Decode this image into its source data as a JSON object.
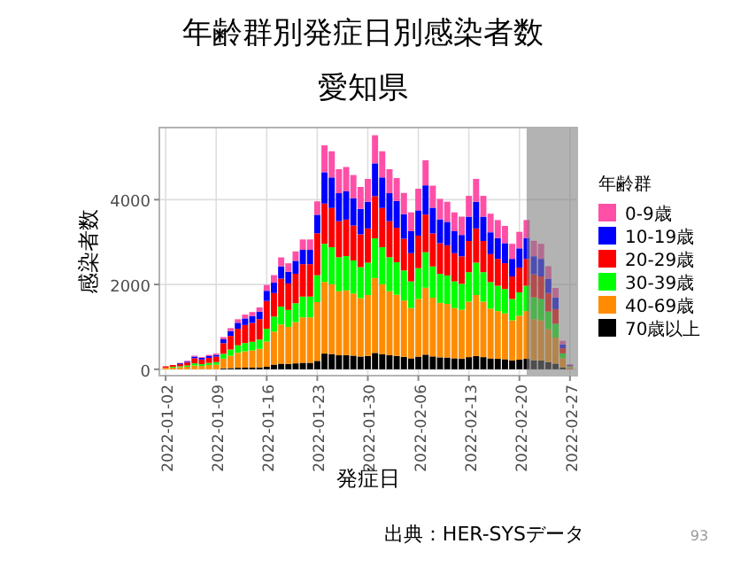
{
  "chart_data": {
    "type": "bar",
    "title": "年齢群別発症日別感染者数",
    "subtitle": "愛知県",
    "xlabel": "発症日",
    "ylabel": "感染者数",
    "legend_title": "年齢群",
    "stacked": true,
    "grid": true,
    "legend": "right",
    "x": [
      "2022-01-02",
      "2022-01-03",
      "2022-01-04",
      "2022-01-05",
      "2022-01-06",
      "2022-01-07",
      "2022-01-08",
      "2022-01-09",
      "2022-01-10",
      "2022-01-11",
      "2022-01-12",
      "2022-01-13",
      "2022-01-14",
      "2022-01-15",
      "2022-01-16",
      "2022-01-17",
      "2022-01-18",
      "2022-01-19",
      "2022-01-20",
      "2022-01-21",
      "2022-01-22",
      "2022-01-23",
      "2022-01-24",
      "2022-01-25",
      "2022-01-26",
      "2022-01-27",
      "2022-01-28",
      "2022-01-29",
      "2022-01-30",
      "2022-01-31",
      "2022-02-01",
      "2022-02-02",
      "2022-02-03",
      "2022-02-04",
      "2022-02-05",
      "2022-02-06",
      "2022-02-07",
      "2022-02-08",
      "2022-02-09",
      "2022-02-10",
      "2022-02-11",
      "2022-02-12",
      "2022-02-13",
      "2022-02-14",
      "2022-02-15",
      "2022-02-16",
      "2022-02-17",
      "2022-02-18",
      "2022-02-19",
      "2022-02-20",
      "2022-02-21",
      "2022-02-22",
      "2022-02-23",
      "2022-02-24",
      "2022-02-25",
      "2022-02-26",
      "2022-02-27"
    ],
    "xlim": [
      "2022-01-01T03:00",
      "2022-02-28"
    ],
    "xticks": [
      "2022-01-02",
      "2022-01-09",
      "2022-01-16",
      "2022-01-23",
      "2022-01-30",
      "2022-02-06",
      "2022-02-13",
      "2022-02-20",
      "2022-02-27"
    ],
    "ylim": [
      -150,
      5700
    ],
    "yticks": [
      0,
      2000,
      4000
    ],
    "series": [
      {
        "name": "70歳以上",
        "color": "#000000",
        "values": [
          0,
          0,
          0,
          0,
          null,
          null,
          null,
          null,
          23,
          29,
          35,
          38,
          40,
          44,
          59,
          111,
          132,
          125,
          139,
          153,
          153,
          198,
          370,
          360,
          330,
          334,
          321,
          301,
          314,
          386,
          360,
          330,
          316,
          291,
          259,
          298,
          345,
          303,
          281,
          277,
          259,
          252,
          286,
          314,
          286,
          257,
          246,
          237,
          207,
          227,
          246,
          212,
          207,
          170,
          134,
          47,
          8
        ]
      },
      {
        "name": "40-69歳",
        "color": "#ff8c00",
        "values": [
          40,
          40,
          50,
          60,
          90,
          80,
          100,
          110,
          228,
          291,
          354,
          387,
          405,
          438,
          597,
          777,
          924,
          875,
          973,
          1071,
          1071,
          1386,
          1690,
          1645,
          1510,
          1526,
          1466,
          1376,
          1437,
          1766,
          1645,
          1510,
          1443,
          1331,
          1184,
          1363,
          1578,
          1386,
          1286,
          1264,
          1184,
          1152,
          1309,
          1437,
          1309,
          1174,
          1126,
          1082,
          947,
          1037,
          1126,
          970,
          947,
          778,
          614,
          214,
          38
        ]
      },
      {
        "name": "30-39歳",
        "color": "#00ff00",
        "values": [
          0,
          20,
          20,
          30,
          50,
          40,
          50,
          60,
          114,
          146,
          177,
          194,
          203,
          219,
          299,
          355,
          422,
          400,
          445,
          490,
          490,
          634,
          898,
          874,
          802,
          811,
          779,
          731,
          763,
          938,
          874,
          802,
          767,
          707,
          629,
          724,
          838,
          736,
          683,
          672,
          629,
          612,
          695,
          763,
          695,
          624,
          598,
          575,
          503,
          551,
          598,
          515,
          503,
          413,
          326,
          114,
          20
        ]
      },
      {
        "name": "20-29歳",
        "color": "#ff0000",
        "values": [
          30,
          40,
          50,
          70,
          120,
          110,
          120,
          130,
          251,
          320,
          389,
          426,
          445,
          482,
          657,
          555,
          660,
          625,
          695,
          765,
          765,
          990,
          950,
          925,
          850,
          859,
          824,
          774,
          808,
          994,
          925,
          850,
          812,
          749,
          666,
          767,
          887,
          779,
          724,
          711,
          666,
          648,
          736,
          808,
          736,
          661,
          634,
          608,
          533,
          583,
          634,
          545,
          533,
          437,
          346,
          121,
          22
        ]
      },
      {
        "name": "10-19歳",
        "color": "#0000ff",
        "values": [
          0,
          0,
          20,
          20,
          40,
          40,
          40,
          40,
          91,
          116,
          142,
          155,
          162,
          175,
          239,
          244,
          290,
          275,
          306,
          337,
          337,
          436,
          739,
          720,
          661,
          668,
          641,
          602,
          629,
          773,
          720,
          661,
          631,
          582,
          518,
          596,
          690,
          606,
          563,
          553,
          518,
          504,
          573,
          629,
          573,
          514,
          493,
          473,
          414,
          454,
          493,
          424,
          414,
          340,
          269,
          94,
          17
        ]
      },
      {
        "name": "0-9歳",
        "color": "#ff4fa7",
        "values": [
          0,
          0,
          10,
          20,
          20,
          20,
          30,
          30,
          53,
          68,
          83,
          90,
          95,
          102,
          139,
          178,
          211,
          200,
          222,
          245,
          245,
          317,
          634,
          617,
          566,
          572,
          550,
          516,
          539,
          662,
          617,
          566,
          541,
          499,
          444,
          511,
          592,
          520,
          482,
          474,
          444,
          432,
          491,
          539,
          491,
          440,
          422,
          406,
          355,
          389,
          422,
          364,
          355,
          292,
          230,
          80,
          14
        ]
      }
    ],
    "bands": [
      {
        "axis": "x",
        "from": "2022-02-21",
        "to": "2022-02-28",
        "color": "#808080"
      }
    ],
    "annotations": [
      "出典：HER-SYSデータ",
      "93"
    ]
  }
}
